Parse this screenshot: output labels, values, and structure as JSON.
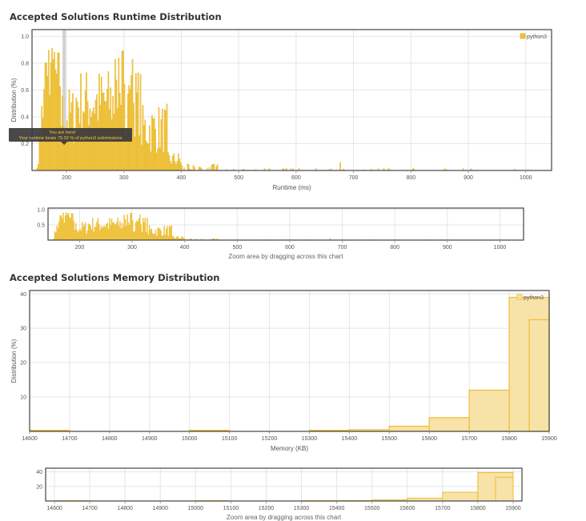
{
  "runtime_section": {
    "title": "Accepted Solutions Runtime Distribution",
    "zoom_caption": "Zoom area by dragging across this chart",
    "tooltip": {
      "line1": "You are here!",
      "line2": "Your runtime beats 79.32 % of python3 submissions"
    }
  },
  "memory_section": {
    "title": "Accepted Solutions Memory Distribution",
    "zoom_caption": "Zoom area by dragging across this chart"
  },
  "colors": {
    "bar": "#efc33a",
    "bar_stroke": "#e2b02a",
    "mem_fill": "#f7e2a8",
    "mem_stroke": "#efbc33",
    "marker": "#cccccc"
  },
  "chart_data": [
    {
      "id": "runtime-main",
      "type": "bar",
      "title": "Accepted Solutions Runtime Distribution",
      "xlabel": "Runtime (ms)",
      "ylabel": "Distribution (%)",
      "xlim": [
        140,
        1045
      ],
      "ylim": [
        0,
        1.05
      ],
      "xticks": [
        200,
        300,
        400,
        500,
        600,
        700,
        800,
        900,
        1000
      ],
      "yticks": [
        0.2,
        0.4,
        0.6,
        0.8,
        1.0
      ],
      "ytick_labels": [
        "0.2",
        "0.4",
        "0.6",
        "0.8",
        "1.0"
      ],
      "grid": true,
      "legend": "top-right",
      "series": [
        {
          "name": "python3",
          "bin_width": 2,
          "x": [],
          "values": []
        }
      ],
      "highlight_x": 196
    },
    {
      "id": "runtime-zoom",
      "type": "bar",
      "title": "",
      "xlim": [
        140,
        1045
      ],
      "ylim": [
        0,
        1.05
      ],
      "xticks": [
        200,
        300,
        400,
        500,
        600,
        700,
        800,
        900,
        1000
      ],
      "yticks": [
        0.5,
        1.0
      ],
      "ytick_labels": [
        "0.5",
        "1.0"
      ],
      "grid": true,
      "series_ref": "runtime-main"
    },
    {
      "id": "memory-main",
      "type": "bar",
      "title": "Accepted Solutions Memory Distribution",
      "xlabel": "Memory (KB)",
      "ylabel": "Distribution (%)",
      "xlim": [
        14600,
        15900
      ],
      "ylim": [
        0,
        41
      ],
      "xticks": [
        14600,
        14700,
        14800,
        14900,
        15000,
        15100,
        15200,
        15300,
        15400,
        15500,
        15600,
        15700,
        15800,
        15900
      ],
      "yticks": [
        10,
        20,
        30,
        40
      ],
      "ytick_labels": [
        "10",
        "20",
        "30",
        "40"
      ],
      "grid": true,
      "legend": "top-right",
      "series": [
        {
          "name": "python3",
          "bin_width": 100,
          "x": [
            14600,
            15000,
            15300,
            15400,
            15500,
            15600,
            15700,
            15800
          ],
          "values": [
            0.3,
            0.3,
            0.3,
            0.5,
            1.5,
            4,
            12,
            39
          ]
        }
      ],
      "extra_bars": [
        {
          "x": 15850,
          "width": 50,
          "value": 32.5
        }
      ]
    },
    {
      "id": "memory-zoom",
      "type": "bar",
      "title": "",
      "xlim": [
        14575,
        15925
      ],
      "ylim": [
        0,
        45
      ],
      "xticks": [
        14600,
        14700,
        14800,
        14900,
        15000,
        15100,
        15200,
        15300,
        15400,
        15500,
        15600,
        15700,
        15800,
        15900
      ],
      "yticks": [
        20,
        40
      ],
      "ytick_labels": [
        "20",
        "40"
      ],
      "grid": true,
      "series_ref": "memory-main"
    }
  ]
}
